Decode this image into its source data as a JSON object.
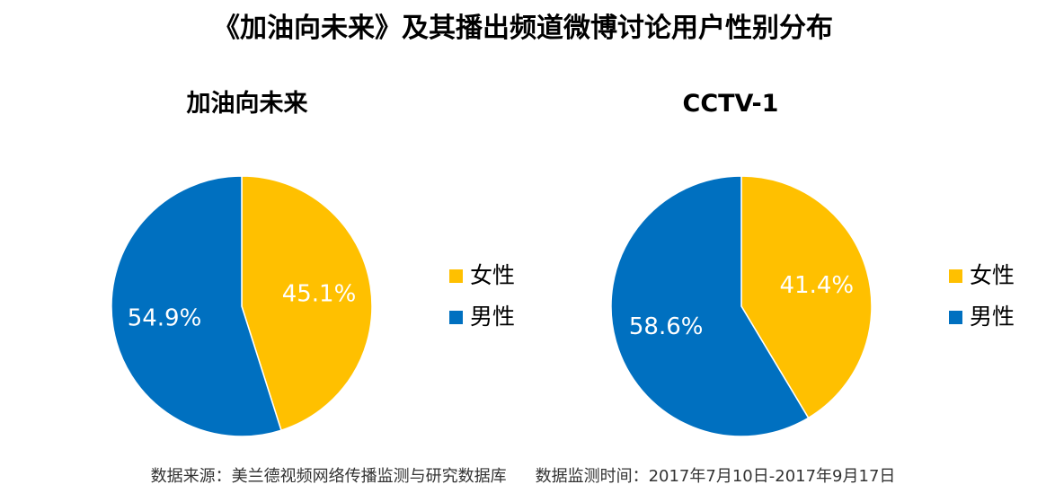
{
  "title": "《加油向未来》及其播出频道微博讨论用户性别分布",
  "source_text": "数据来源：美兰德视频网络传播监测与研究数据库",
  "date_text": "数据监测时间：2017年7月10日-2017年9月17日",
  "colors": {
    "female": "#FFC000",
    "male": "#0070C0"
  },
  "chart_data": [
    {
      "type": "pie",
      "title": "加油向未来",
      "categories": [
        "女性",
        "男性"
      ],
      "values": [
        45.1,
        54.9
      ],
      "labels": [
        "45.1%",
        "54.9%"
      ],
      "legend": [
        "女性",
        "男性"
      ],
      "legend_position": "right"
    },
    {
      "type": "pie",
      "title": "CCTV-1",
      "categories": [
        "女性",
        "男性"
      ],
      "values": [
        41.4,
        58.6
      ],
      "labels": [
        "41.4%",
        "58.6%"
      ],
      "legend": [
        "女性",
        "男性"
      ],
      "legend_position": "right"
    }
  ]
}
